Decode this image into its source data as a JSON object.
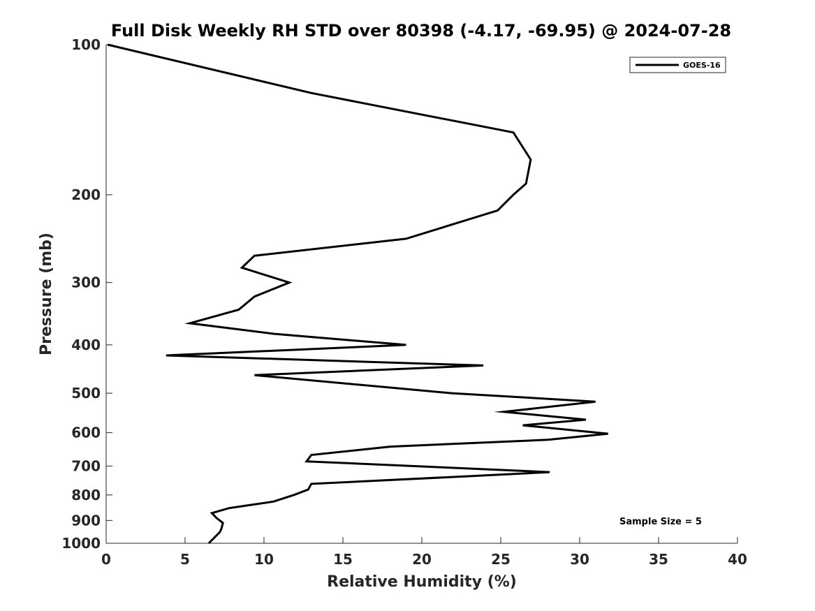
{
  "chart_data": {
    "type": "line",
    "title": "Full Disk Weekly RH STD over 80398 (-4.17, -69.95) @ 2024-07-28",
    "xlabel": "Relative Humidity (%)",
    "ylabel": "Pressure (mb)",
    "xlim": [
      0,
      40
    ],
    "ylim": [
      100,
      1000
    ],
    "yscale": "log",
    "y_reversed": true,
    "grid": false,
    "xticks": [
      0,
      5,
      10,
      15,
      20,
      25,
      30,
      35,
      40
    ],
    "xtick_labels": [
      "0",
      "5",
      "10",
      "15",
      "20",
      "25",
      "30",
      "35",
      "40"
    ],
    "yticks": [
      100,
      200,
      300,
      400,
      500,
      600,
      700,
      800,
      900,
      1000
    ],
    "ytick_labels": [
      "100",
      "200",
      "300",
      "400",
      "500",
      "600",
      "700",
      "800",
      "900",
      "1000"
    ],
    "legend": {
      "position": "top-right",
      "entries": [
        "GOES-16"
      ]
    },
    "annotation": "Sample Size = 5",
    "series": [
      {
        "name": "GOES-16",
        "color": "#000000",
        "points": [
          [
            0.1,
            100
          ],
          [
            13.0,
            125
          ],
          [
            25.8,
            150
          ],
          [
            26.9,
            170
          ],
          [
            26.6,
            190
          ],
          [
            25.8,
            200
          ],
          [
            24.8,
            215
          ],
          [
            19.0,
            245
          ],
          [
            9.4,
            265
          ],
          [
            8.6,
            280
          ],
          [
            11.6,
            300
          ],
          [
            9.4,
            320
          ],
          [
            8.4,
            340
          ],
          [
            5.3,
            362
          ],
          [
            10.6,
            380
          ],
          [
            19.0,
            400
          ],
          [
            3.8,
            420
          ],
          [
            23.9,
            440
          ],
          [
            9.4,
            460
          ],
          [
            21.9,
            500
          ],
          [
            31.0,
            520
          ],
          [
            25.2,
            545
          ],
          [
            30.4,
            565
          ],
          [
            26.4,
            580
          ],
          [
            31.8,
            603
          ],
          [
            28.0,
            620
          ],
          [
            18.0,
            640
          ],
          [
            13.0,
            665
          ],
          [
            12.7,
            685
          ],
          [
            28.1,
            720
          ],
          [
            22.5,
            735
          ],
          [
            13.0,
            760
          ],
          [
            12.8,
            780
          ],
          [
            11.9,
            800
          ],
          [
            10.6,
            825
          ],
          [
            7.8,
            850
          ],
          [
            6.7,
            870
          ],
          [
            7.0,
            890
          ],
          [
            7.4,
            910
          ],
          [
            7.3,
            935
          ],
          [
            7.2,
            950
          ],
          [
            6.5,
            1000
          ]
        ]
      }
    ]
  }
}
